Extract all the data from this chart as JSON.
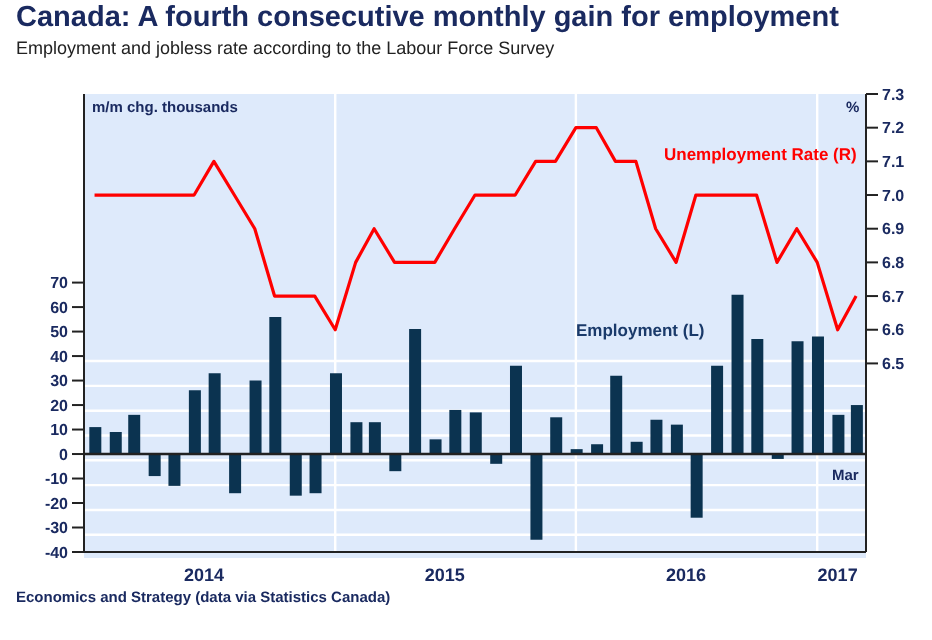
{
  "chart_data": {
    "type": "bar",
    "title": "Canada: A fourth consecutive monthly gain for employment",
    "subtitle": "Employment and jobless rate according to the Labour Force Survey",
    "ylabel": "m/m chg. thousands",
    "y2label": "%",
    "annotations": [
      "Economics and Strategy (data via Statistics Canada)",
      "Mar"
    ],
    "x": [
      "2014-01",
      "2014-02",
      "2014-03",
      "2014-04",
      "2014-05",
      "2014-06",
      "2014-07",
      "2014-08",
      "2014-09",
      "2014-10",
      "2014-11",
      "2014-12",
      "2015-01",
      "2015-02",
      "2015-03",
      "2015-04",
      "2015-05",
      "2015-06",
      "2015-07",
      "2015-08",
      "2015-09",
      "2015-10",
      "2015-11",
      "2015-12",
      "2016-01",
      "2016-02",
      "2016-03",
      "2016-04",
      "2016-05",
      "2016-06",
      "2016-07",
      "2016-08",
      "2016-09",
      "2016-10",
      "2016-11",
      "2016-12",
      "2017-01",
      "2017-02",
      "2017-03"
    ],
    "series": [
      {
        "name": "Employment (L)",
        "color": "#0b3350",
        "values": [
          11,
          9,
          16,
          -9,
          -13,
          26,
          33,
          -16,
          30,
          56,
          -17,
          -16,
          33,
          13,
          13,
          -7,
          51,
          6,
          18,
          17,
          -4,
          36,
          -35,
          15,
          2,
          4,
          32,
          5,
          14,
          12,
          -26,
          36,
          65,
          47,
          -2,
          46,
          48,
          16,
          20
        ]
      },
      {
        "name": "Unemployment Rate (R)",
        "type": "line",
        "axis": "y2",
        "color": "#ff0000",
        "values": [
          7.0,
          7.0,
          7.0,
          7.0,
          7.0,
          7.0,
          7.1,
          7.0,
          6.9,
          6.7,
          6.7,
          6.7,
          6.6,
          6.8,
          6.9,
          6.8,
          6.8,
          6.8,
          6.9,
          7.0,
          7.0,
          7.0,
          7.1,
          7.1,
          7.2,
          7.2,
          7.1,
          7.1,
          6.9,
          6.8,
          7.0,
          7.0,
          7.0,
          7.0,
          6.8,
          6.9,
          6.8,
          6.6,
          6.7
        ]
      }
    ],
    "xlim": [
      "2013-12-16",
      "2017-03-16"
    ],
    "xticks": [
      {
        "value": "2014-06-16",
        "label": "2014"
      },
      {
        "value": "2015-01",
        "label": null
      },
      {
        "value": "2015-06-16",
        "label": "2015"
      },
      {
        "value": "2016-01",
        "label": null
      },
      {
        "value": "2016-06-16",
        "label": "2016"
      },
      {
        "value": "2017-01",
        "label": null
      },
      {
        "value": "2017-02",
        "label": "2017"
      }
    ],
    "ylim": [
      -40,
      147
    ],
    "yticks": [
      -40,
      -30,
      -20,
      -10,
      0,
      10,
      20,
      30,
      40,
      50,
      60,
      70
    ],
    "y2lim": [
      5.94,
      7.3
    ],
    "y2ticks": [
      6.5,
      6.6,
      6.7,
      6.8,
      6.9,
      {
        "value": 7,
        "label": "7.0"
      },
      7.1,
      7.2,
      7.3
    ],
    "grid": true,
    "marker": "none"
  }
}
